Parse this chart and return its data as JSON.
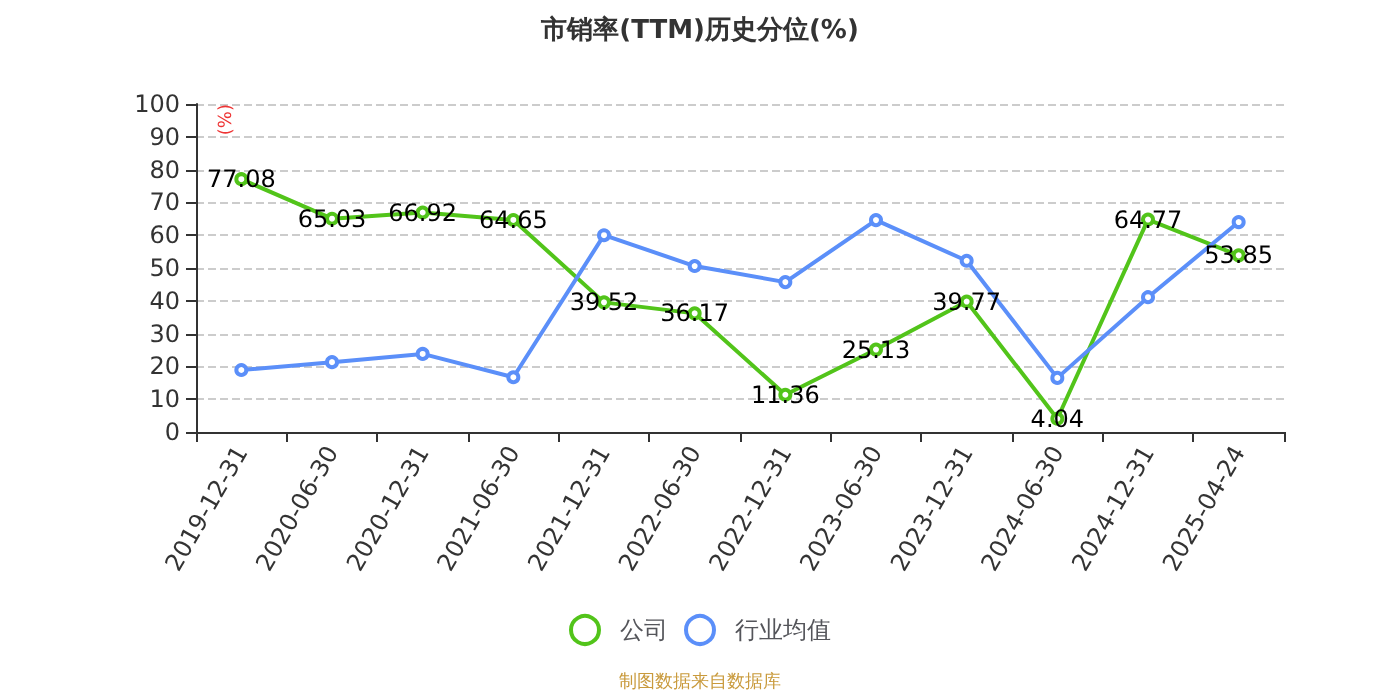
{
  "chart_data": {
    "type": "line",
    "title": "市销率(TTM)历史分位(%)",
    "ylabel": "(%)",
    "categories": [
      "2019-12-31",
      "2020-06-30",
      "2020-12-31",
      "2021-06-30",
      "2021-12-31",
      "2022-06-30",
      "2022-12-31",
      "2023-06-30",
      "2023-12-31",
      "2024-06-30",
      "2024-12-31",
      "2025-04-24"
    ],
    "series": [
      {
        "name": "公司",
        "color": "#52c41a",
        "values": [
          77.08,
          65.03,
          66.92,
          64.65,
          39.52,
          36.17,
          11.36,
          25.13,
          39.77,
          4.04,
          64.77,
          53.85
        ],
        "value_labels": [
          "77.08",
          "65.03",
          "66.92",
          "64.65",
          "39.52",
          "36.17",
          "11.36",
          "25.13",
          "39.77",
          "4.04",
          "64.77",
          "53.85"
        ]
      },
      {
        "name": "行业均值",
        "color": "#5b8ff9",
        "values": [
          18.9,
          21.3,
          23.8,
          16.7,
          60.0,
          50.6,
          45.7,
          64.6,
          52.2,
          16.5,
          41.1,
          64.0
        ]
      }
    ],
    "ylim": [
      0,
      100
    ],
    "yticks": [
      0,
      10,
      20,
      30,
      40,
      50,
      60,
      70,
      80,
      90,
      100
    ],
    "grid": "y",
    "legend": "bottom",
    "marker": "circle",
    "line_style": "solid",
    "annotations": [
      "制图数据来自数据库"
    ]
  }
}
